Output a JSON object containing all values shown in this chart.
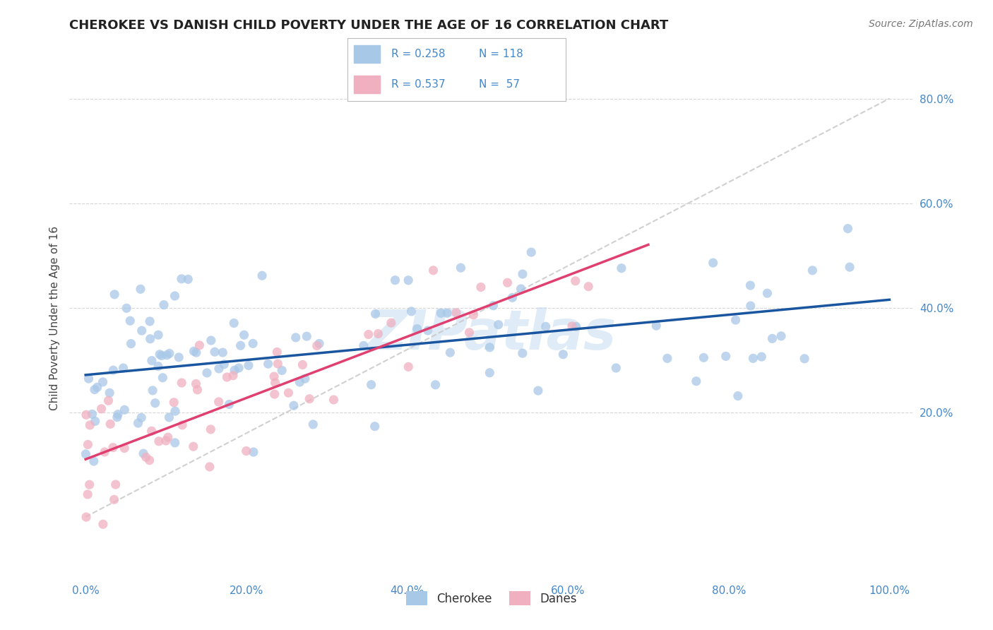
{
  "title": "CHEROKEE VS DANISH CHILD POVERTY UNDER THE AGE OF 16 CORRELATION CHART",
  "source": "Source: ZipAtlas.com",
  "ylabel": "Child Poverty Under the Age of 16",
  "cherokee_color": "#A8C8E8",
  "danes_color": "#F0B0C0",
  "cherokee_line_color": "#1A56A0",
  "danes_line_color": "#E04070",
  "ref_line_color": "#C8C8C8",
  "watermark": "ZIPatlas",
  "background_color": "#FFFFFF",
  "grid_color": "#CCCCCC",
  "title_color": "#222222",
  "tick_color": "#4488CC",
  "cherokee_R": 0.258,
  "danes_R": 0.537,
  "cherokee_N": 118,
  "danes_N": 57,
  "legend_r1": "0.258",
  "legend_n1": "118",
  "legend_r2": "0.537",
  "legend_n2": " 57"
}
